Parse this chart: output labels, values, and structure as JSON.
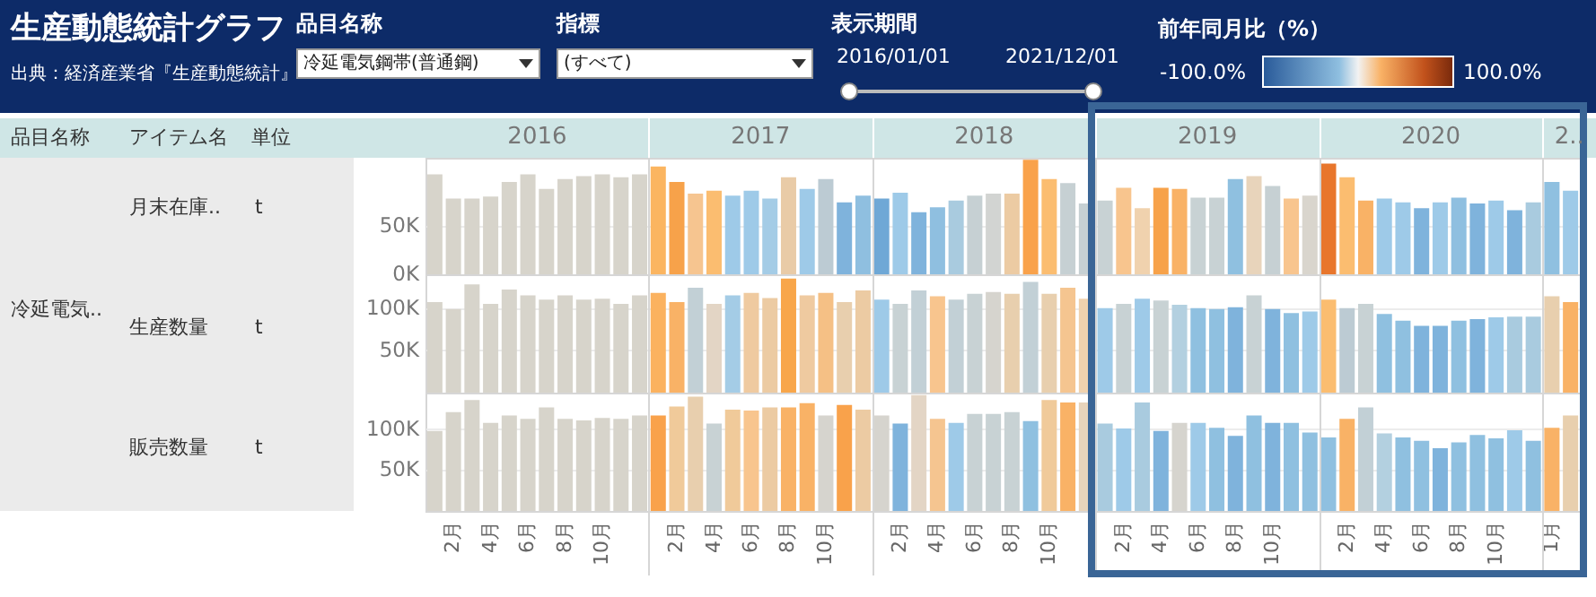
{
  "chart_data": [
    {
      "type": "other",
      "title": "生産動態統計グラフ",
      "annotations": [
        "出典：経済産業省『生産動態統計』",
        "品目名称",
        "冷延電気鋼帯(普通鋼)",
        "指標",
        "(すべて)",
        "表示期間",
        "2016/01/01",
        "2021/12/01",
        "前年同月比（%）",
        "-100.0%",
        "100.0%",
        "品目名称",
        "アイテム名",
        "単位",
        "冷延電気..",
        "月末在庫..",
        "t",
        "生産数量",
        "t",
        "販売数量",
        "t"
      ]
    },
    {
      "type": "bar",
      "categories": [
        null,
        null,
        null,
        null,
        null,
        null,
        null,
        null,
        null,
        null,
        null,
        null,
        null,
        null,
        null,
        null,
        null,
        null,
        null,
        null,
        null,
        null,
        null,
        null,
        null,
        null,
        null,
        null,
        null,
        null,
        null,
        null,
        null,
        null,
        null,
        null,
        null,
        null,
        null,
        null,
        null,
        null,
        null,
        null,
        null,
        null,
        null,
        null,
        null,
        null,
        null,
        null,
        null,
        null,
        null,
        null,
        null,
        null,
        null,
        null,
        null,
        null
      ],
      "values": [
        103000,
        78000,
        78000,
        80000,
        95000,
        103000,
        88000,
        98000,
        101000,
        103000,
        100000,
        103000,
        111000,
        95000,
        83000,
        86000,
        81000,
        86000,
        78000,
        100000,
        88000,
        98000,
        74000,
        81000,
        78000,
        84000,
        64000,
        69000,
        76000,
        81000,
        83000,
        83000,
        118000,
        98000,
        94000,
        73000,
        76000,
        89000,
        68000,
        89000,
        88000,
        79000,
        79000,
        98000,
        101000,
        91000,
        78000,
        81000,
        114000,
        100000,
        76000,
        78000,
        74000,
        68000,
        74000,
        79000,
        73000,
        76000,
        66000,
        74000,
        95000,
        86000
      ],
      "colors": [
        "#d7d4cb",
        "#d7d4cb",
        "#d7d4cb",
        "#d7d4cb",
        "#d7d4cb",
        "#d7d4cb",
        "#d7d4cb",
        "#d7d4cb",
        "#d7d4cb",
        "#d7d4cb",
        "#d7d4cb",
        "#d7d4cb",
        "#fbb560",
        "#f7a24a",
        "#f6c590",
        "#fbbd70",
        "#9ecae8",
        "#9ecae8",
        "#a4cce6",
        "#e9cba7",
        "#9ecae8",
        "#bccbd3",
        "#7fb3dc",
        "#8fbfe0",
        "#6fa8d6",
        "#9ecae8",
        "#7fb3dc",
        "#8fbfe0",
        "#a9cbdf",
        "#c6d0d3",
        "#d2d4d2",
        "#eccba3",
        "#f9a24b",
        "#fbbd70",
        "#c6d0d3",
        "#c6d0d3",
        "#c8d2d4",
        "#f8c58e",
        "#f0d2ae",
        "#f7a24a",
        "#f9b266",
        "#c8d2d4",
        "#c8d2d4",
        "#8fc0e0",
        "#e8d4bb",
        "#c6d0d3",
        "#f8c58e",
        "#d9d5cd",
        "#e8762c",
        "#fbbd70",
        "#f9b266",
        "#9ecae8",
        "#9ecae8",
        "#7fb3dc",
        "#9ecae8",
        "#8fbfe0",
        "#7fb3dc",
        "#9ecae8",
        "#7fb3dc",
        "#a9cbdf",
        "#8fc0e0",
        "#9ecae8"
      ],
      "ylim": [
        0,
        120000
      ],
      "yticks": [
        {
          "value": 0,
          "label": "0K"
        },
        {
          "value": 50000,
          "label": "50K"
        }
      ],
      "tick_labels": "y",
      "grid": "y",
      "annotations": [
        "2016",
        "2017",
        "2018",
        "2019",
        "2020",
        "2.."
      ]
    },
    {
      "type": "bar",
      "categories": [
        null,
        null,
        null,
        null,
        null,
        null,
        null,
        null,
        null,
        null,
        null,
        null,
        null,
        null,
        null,
        null,
        null,
        null,
        null,
        null,
        null,
        null,
        null,
        null,
        null,
        null,
        null,
        null,
        null,
        null,
        null,
        null,
        null,
        null,
        null,
        null,
        null,
        null,
        null,
        null,
        null,
        null,
        null,
        null,
        null,
        null,
        null,
        null,
        null,
        null,
        null,
        null,
        null,
        null,
        null,
        null,
        null,
        null,
        null,
        null,
        null,
        null
      ],
      "values": [
        107000,
        99000,
        128000,
        105000,
        122000,
        115000,
        110000,
        115000,
        110000,
        111000,
        105000,
        115000,
        118000,
        107000,
        124000,
        105000,
        115000,
        118000,
        112000,
        135000,
        115000,
        118000,
        107000,
        121000,
        110000,
        105000,
        121000,
        114000,
        110000,
        117000,
        119000,
        117000,
        131000,
        117000,
        124000,
        111000,
        100000,
        105000,
        111000,
        109000,
        104000,
        100000,
        99000,
        101000,
        115000,
        99000,
        94000,
        96000,
        110000,
        100000,
        105000,
        93000,
        85000,
        79000,
        79000,
        85000,
        87000,
        89000,
        90000,
        90000,
        114000,
        107000
      ],
      "colors": [
        "#d7d4cb",
        "#d7d4cb",
        "#d7d4cb",
        "#d7d4cb",
        "#d7d4cb",
        "#d7d4cb",
        "#d7d4cb",
        "#d7d4cb",
        "#d7d4cb",
        "#d7d4cb",
        "#d7d4cb",
        "#d7d4cb",
        "#fbb25f",
        "#f9b266",
        "#c2d0d6",
        "#e3d5c5",
        "#a4cce6",
        "#efcaa0",
        "#eccba3",
        "#f8a64a",
        "#efcaa0",
        "#f5c085",
        "#e8cfae",
        "#eccba3",
        "#9ecae8",
        "#c8d2d4",
        "#c2d0d6",
        "#f8c58e",
        "#c2d0d6",
        "#c8d2d4",
        "#d6d4ce",
        "#e8cfae",
        "#c2d0d6",
        "#e8cfae",
        "#f5c590",
        "#f0d2ae",
        "#9ecae8",
        "#c8d2d4",
        "#9ecae8",
        "#c8d2d4",
        "#b3d0e0",
        "#8fc0e0",
        "#8fc0e0",
        "#7fb3dc",
        "#c8d2d4",
        "#7fb3dc",
        "#8fc0e0",
        "#9ecae8",
        "#fbbd70",
        "#bccbd3",
        "#c8d2d4",
        "#8fc0e0",
        "#8fc0e0",
        "#7fb3dc",
        "#7fb3dc",
        "#8fc0e0",
        "#7fb3dc",
        "#9ecae8",
        "#a9cbdf",
        "#a9cbdf",
        "#e8cfae",
        "#f9b266"
      ],
      "ylim": [
        0,
        140000
      ],
      "yticks": [
        {
          "value": 50000,
          "label": "50K"
        },
        {
          "value": 100000,
          "label": "100K"
        }
      ],
      "tick_labels": "y",
      "grid": "y"
    },
    {
      "type": "bar",
      "categories": [
        null,
        "2月",
        null,
        "4月",
        null,
        "6月",
        null,
        "8月",
        null,
        "10月",
        null,
        null,
        null,
        "2月",
        null,
        "4月",
        null,
        "6月",
        null,
        "8月",
        null,
        "10月",
        null,
        null,
        null,
        "2月",
        null,
        "4月",
        null,
        "6月",
        null,
        "8月",
        null,
        "10月",
        null,
        null,
        null,
        "2月",
        null,
        "4月",
        null,
        "6月",
        null,
        "8月",
        null,
        "10月",
        null,
        null,
        null,
        "2月",
        null,
        "4月",
        null,
        "6月",
        null,
        "8月",
        null,
        "10月",
        null,
        null,
        "1月",
        null
      ],
      "values": [
        98000,
        121000,
        136000,
        108000,
        117000,
        113000,
        127000,
        113000,
        111000,
        114000,
        113000,
        117000,
        117000,
        128000,
        140000,
        107000,
        124000,
        123000,
        127000,
        127000,
        132000,
        117000,
        130000,
        124000,
        117000,
        107000,
        142000,
        113000,
        108000,
        119000,
        119000,
        121000,
        110000,
        136000,
        133000,
        133000,
        107000,
        101000,
        133000,
        98000,
        108000,
        108000,
        102000,
        92000,
        117000,
        108000,
        108000,
        96000,
        90000,
        113000,
        127000,
        95000,
        90000,
        86000,
        77000,
        84000,
        93000,
        89000,
        99000,
        86000,
        102000,
        117000
      ],
      "colors": [
        "#d7d4cb",
        "#d7d4cb",
        "#d7d4cb",
        "#d7d4cb",
        "#d7d4cb",
        "#d7d4cb",
        "#d7d4cb",
        "#d7d4cb",
        "#d7d4cb",
        "#d7d4cb",
        "#d7d4cb",
        "#d7d4cb",
        "#f9a24b",
        "#f0ca9a",
        "#e8cfae",
        "#c8d2d4",
        "#f0ca9a",
        "#f8c58e",
        "#eccba3",
        "#f9b266",
        "#f9b266",
        "#d6d4ce",
        "#f9a24b",
        "#eccba3",
        "#d6d4ce",
        "#7fb3dc",
        "#e3d5c5",
        "#f5c590",
        "#9ecae8",
        "#c8d2d4",
        "#c8d2d4",
        "#c8d2d4",
        "#8fc0e0",
        "#f0ca9a",
        "#f9b266",
        "#e8d4bb",
        "#a9cbdf",
        "#9ecae8",
        "#a9cbdf",
        "#7fb3dc",
        "#d6d4ce",
        "#9ecae8",
        "#8fc0e0",
        "#7fb3dc",
        "#8fc0e0",
        "#7fb3dc",
        "#8fc0e0",
        "#8fc0e0",
        "#8fc0e0",
        "#f9b266",
        "#c2d0d6",
        "#b3d0e0",
        "#8fc0e0",
        "#8fc0e0",
        "#7fb3dc",
        "#8fc0e0",
        "#8fc0e0",
        "#8fc0e0",
        "#9ecae8",
        "#8fc0e0",
        "#f9b266",
        "#e8cfae"
      ],
      "ylim": [
        0,
        145000
      ],
      "yticks": [
        {
          "value": 50000,
          "label": "50K"
        },
        {
          "value": 100000,
          "label": "100K"
        }
      ],
      "grid": "y"
    }
  ]
}
